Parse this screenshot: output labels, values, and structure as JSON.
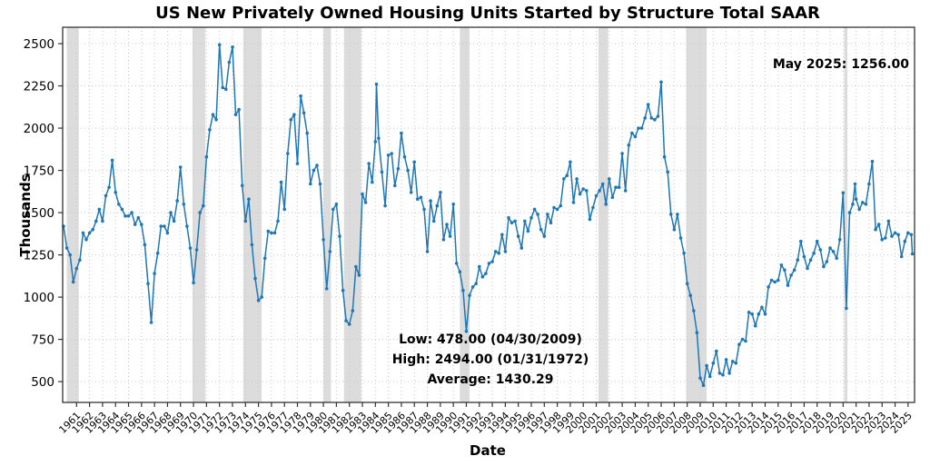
{
  "header": {
    "title": "US New Privately Owned Housing Units Started by Structure Total SAAR"
  },
  "annotations": {
    "latest": "May 2025: 1256.00",
    "low": "Low: 478.00 (04/30/2009)",
    "high": "High: 2494.00 (01/31/1972)",
    "average": "Average: 1430.29"
  },
  "chart_data": {
    "type": "line",
    "title": "US New Privately Owned Housing Units Started by Structure Total SAAR",
    "xlabel": "Date",
    "ylabel": "Thousands",
    "grid": true,
    "legend": "none",
    "line_color": "#1f77b4",
    "marker": "dot",
    "recession_band_color": "#dcdcdc",
    "xlim": [
      1959.93,
      2025.5
    ],
    "ylim": [
      377,
      2597
    ],
    "y_ticks": [
      500,
      750,
      1000,
      1250,
      1500,
      1750,
      2000,
      2250,
      2500
    ],
    "x_tick_labels": [
      "1961",
      "1962",
      "1963",
      "1964",
      "1965",
      "1966",
      "1967",
      "1968",
      "1969",
      "1970",
      "1971",
      "1972",
      "1973",
      "1974",
      "1975",
      "1976",
      "1977",
      "1978",
      "1979",
      "1980",
      "1981",
      "1982",
      "1983",
      "1984",
      "1985",
      "1986",
      "1987",
      "1988",
      "1989",
      "1990",
      "1991",
      "1992",
      "1993",
      "1994",
      "1995",
      "1996",
      "1997",
      "1998",
      "1999",
      "2000",
      "2001",
      "2002",
      "2003",
      "2004",
      "2005",
      "2006",
      "2007",
      "2008",
      "2009",
      "2010",
      "2011",
      "2012",
      "2013",
      "2014",
      "2015",
      "2016",
      "2017",
      "2018",
      "2019",
      "2020",
      "2021",
      "2022",
      "2023",
      "2024",
      "2025"
    ],
    "recession_bands": [
      [
        1960.25,
        1961.17
      ],
      [
        1969.92,
        1970.92
      ],
      [
        1973.83,
        1975.25
      ],
      [
        1980.0,
        1980.58
      ],
      [
        1981.58,
        1982.92
      ],
      [
        1990.5,
        1991.25
      ],
      [
        2001.17,
        2001.92
      ],
      [
        2007.92,
        2009.5
      ],
      [
        2020.08,
        2020.33
      ]
    ],
    "series": {
      "name": "Housing Units Started (Thousands, SAAR)",
      "sampling": "quarterly estimates read from plot (Jan/Apr/Jul/Oct of each year)",
      "start_year": 1960.0,
      "step_years": 0.25,
      "values": [
        1420,
        1290,
        1250,
        1090,
        1170,
        1220,
        1380,
        1340,
        1380,
        1400,
        1450,
        1520,
        1450,
        1600,
        1650,
        1810,
        1620,
        1550,
        1520,
        1480,
        1480,
        1500,
        1430,
        1470,
        1430,
        1310,
        1080,
        850,
        1140,
        1260,
        1420,
        1420,
        1380,
        1500,
        1450,
        1570,
        1769,
        1550,
        1420,
        1290,
        1085,
        1280,
        1500,
        1540,
        1830,
        1990,
        2080,
        2050,
        2494,
        2240,
        2230,
        2390,
        2480,
        2080,
        2110,
        1660,
        1450,
        1580,
        1310,
        1110,
        980,
        1000,
        1230,
        1390,
        1380,
        1380,
        1450,
        1680,
        1520,
        1850,
        2050,
        2080,
        1790,
        2190,
        2090,
        1970,
        1670,
        1750,
        1780,
        1670,
        1340,
        1050,
        1270,
        1520,
        1550,
        1360,
        1040,
        860,
        840,
        920,
        1180,
        1130,
        1610,
        1560,
        1790,
        1680,
        1920,
        1940,
        1740,
        1540,
        1840,
        1850,
        1660,
        1760,
        1970,
        1830,
        1750,
        1620,
        1800,
        1580,
        1590,
        1520,
        1270,
        1570,
        1450,
        1540,
        1620,
        1340,
        1430,
        1360,
        1550,
        1200,
        1150,
        1040,
        798,
        1010,
        1060,
        1080,
        1180,
        1120,
        1140,
        1200,
        1210,
        1270,
        1260,
        1370,
        1270,
        1470,
        1440,
        1450,
        1360,
        1290,
        1450,
        1390,
        1470,
        1520,
        1490,
        1400,
        1360,
        1490,
        1440,
        1530,
        1520,
        1540,
        1700,
        1720,
        1800,
        1560,
        1700,
        1610,
        1640,
        1630,
        1460,
        1530,
        1600,
        1630,
        1670,
        1550,
        1700,
        1590,
        1650,
        1650,
        1850,
        1630,
        1900,
        1970,
        1950,
        2000,
        2000,
        2060,
        2140,
        2060,
        2050,
        2070,
        2273,
        1830,
        1740,
        1490,
        1400,
        1490,
        1350,
        1260,
        1080,
        1010,
        920,
        790,
        521,
        478,
        594,
        530,
        610,
        680,
        550,
        540,
        630,
        550,
        620,
        610,
        720,
        750,
        740,
        910,
        900,
        830,
        900,
        940,
        900,
        1060,
        1100,
        1090,
        1100,
        1190,
        1160,
        1070,
        1130,
        1160,
        1220,
        1330,
        1240,
        1170,
        1220,
        1260,
        1330,
        1280,
        1180,
        1210,
        1290,
        1270,
        1230,
        1340,
        1617,
        934,
        1500,
        1550,
        1580,
        1520,
        1560,
        1550,
        1670,
        1803,
        1400,
        1430,
        1340,
        1350,
        1450,
        1360,
        1380,
        1370,
        1240,
        1330,
        1380,
        1370
      ],
      "extra_points": [
        [
          1984.08,
          2260
        ],
        [
          2020.92,
          1670
        ],
        [
          2025.33,
          1256
        ]
      ]
    },
    "stats": {
      "low_value": 478.0,
      "low_date": "04/30/2009",
      "high_value": 2494.0,
      "high_date": "01/31/1972",
      "average": 1430.29,
      "latest_period": "May 2025",
      "latest_value": 1256.0
    }
  }
}
